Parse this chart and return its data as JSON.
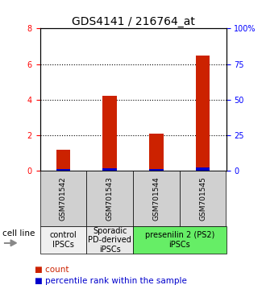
{
  "title": "GDS4141 / 216764_at",
  "samples": [
    "GSM701542",
    "GSM701543",
    "GSM701544",
    "GSM701545"
  ],
  "red_values": [
    1.2,
    4.2,
    2.1,
    6.5
  ],
  "blue_values": [
    0.12,
    0.15,
    0.1,
    0.2
  ],
  "ylim_left": [
    0,
    8
  ],
  "ylim_right": [
    0,
    100
  ],
  "left_yticks": [
    0,
    2,
    4,
    6,
    8
  ],
  "right_yticks": [
    0,
    25,
    50,
    75,
    100
  ],
  "right_yticklabels": [
    "0",
    "25",
    "50",
    "75",
    "100%"
  ],
  "groups": [
    {
      "label": "control\nIPSCs",
      "start": 0,
      "end": 1,
      "color": "#f0f0f0"
    },
    {
      "label": "Sporadic\nPD-derived\niPSCs",
      "start": 1,
      "end": 2,
      "color": "#e8e8e8"
    },
    {
      "label": "presenilin 2 (PS2)\niPSCs",
      "start": 2,
      "end": 4,
      "color": "#66ee66"
    }
  ],
  "cell_line_label": "cell line",
  "legend_red": "count",
  "legend_blue": "percentile rank within the sample",
  "bar_width": 0.3,
  "red_color": "#cc2200",
  "blue_color": "#0000cc",
  "sample_box_color": "#d0d0d0",
  "title_fontsize": 10,
  "tick_fontsize": 7,
  "group_fontsize": 7,
  "legend_fontsize": 7.5
}
